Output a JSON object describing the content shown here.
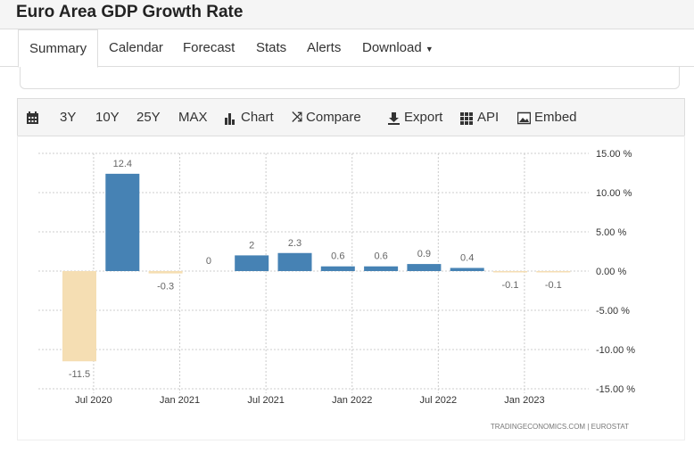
{
  "header": {
    "title": "Euro Area GDP Growth Rate"
  },
  "tabs": [
    {
      "label": "Summary",
      "active": true
    },
    {
      "label": "Calendar"
    },
    {
      "label": "Forecast"
    },
    {
      "label": "Stats"
    },
    {
      "label": "Alerts"
    },
    {
      "label": "Download"
    }
  ],
  "toolbar": {
    "items": [
      {
        "label": "",
        "icon": "calendar-icon"
      },
      {
        "label": "3Y"
      },
      {
        "label": "10Y"
      },
      {
        "label": "25Y"
      },
      {
        "label": "MAX"
      },
      {
        "label": "Chart",
        "icon": "bar-chart-icon"
      },
      {
        "label": "Compare",
        "icon": "shuffle-icon"
      },
      {
        "label": "Export",
        "icon": "download-icon"
      },
      {
        "label": "API",
        "icon": "grid-icon"
      },
      {
        "label": "Embed",
        "icon": "image-icon"
      }
    ]
  },
  "colors": {
    "positive": "#4682b4",
    "negative": "#f5deb3",
    "grid": "#cccccc",
    "label": "#666666"
  },
  "chart_data": {
    "type": "bar",
    "x": [
      "2020-Q2",
      "2020-Q3",
      "2020-Q4",
      "2021-Q1",
      "2021-Q2",
      "2021-Q3",
      "2021-Q4",
      "2022-Q1",
      "2022-Q2",
      "2022-Q3",
      "2022-Q4",
      "2023-Q1"
    ],
    "values": [
      -11.5,
      12.4,
      -0.3,
      0,
      2,
      2.3,
      0.6,
      0.6,
      0.9,
      0.4,
      -0.1,
      -0.1
    ],
    "data_labels": [
      "-11.5",
      "12.4",
      "-0.3",
      "0",
      "2",
      "2.3",
      "0.6",
      "0.6",
      "0.9",
      "0.4",
      "-0.1",
      "-0.1"
    ],
    "ylim": [
      -15,
      15
    ],
    "yticks": [
      15,
      10,
      5,
      0,
      -5,
      -10,
      -15
    ],
    "ytick_labels": [
      "15.00 %",
      "10.00 %",
      "5.00 %",
      "0.00 %",
      "-5.00 %",
      "-10.00 %",
      "-15.00 %"
    ],
    "xticks": [
      "Jul 2020",
      "Jan 2021",
      "Jul 2021",
      "Jan 2022",
      "Jul 2022",
      "Jan 2023"
    ],
    "grid": true,
    "source": "TRADINGECONOMICS.COM  |  EUROSTAT"
  }
}
